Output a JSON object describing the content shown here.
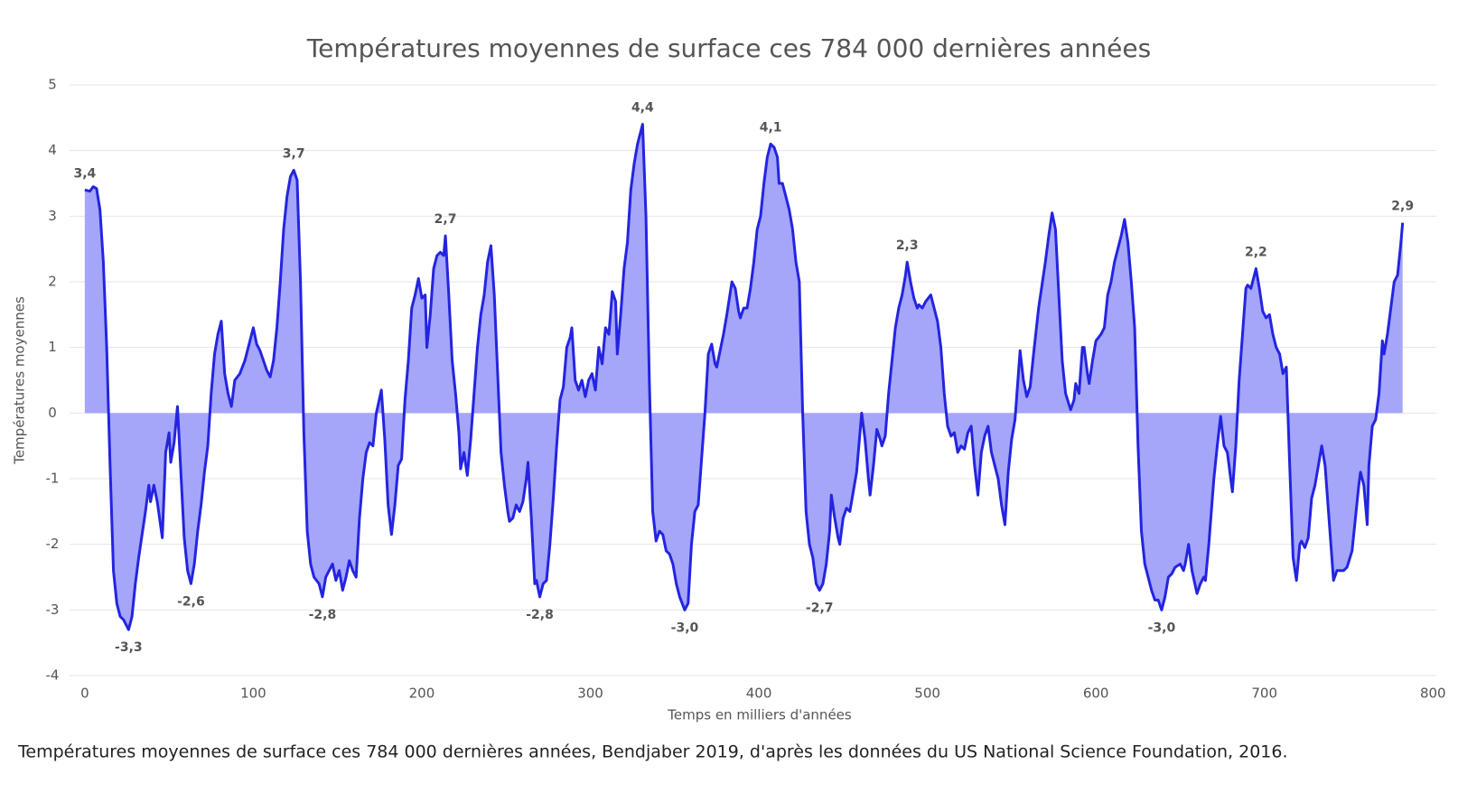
{
  "chart_data": {
    "type": "area",
    "title": "Températures moyennes de surface ces 784 000 dernières années",
    "x_label": "Temps en milliers d'années",
    "y_label": "Températures moyennes",
    "caption": "Températures moyennes de surface ces 784 000 dernières années, Bendjaber 2019, d'après les données du US National Science Foundation, 2016.",
    "xlim": [
      -1,
      802
    ],
    "ylim": [
      -4,
      5
    ],
    "xticks": [
      0,
      100,
      200,
      300,
      400,
      500,
      600,
      700,
      800
    ],
    "yticks": [
      -4,
      -3,
      -2,
      -1,
      0,
      1,
      2,
      3,
      4,
      5
    ],
    "grid": true,
    "series": [
      {
        "color": "#2424e0",
        "fill": "#a5a5fa",
        "x": [
          0,
          3,
          5,
          7,
          9,
          11,
          13,
          15,
          17,
          19,
          21,
          23,
          26,
          28,
          30,
          32,
          34,
          36,
          38,
          39,
          41,
          43,
          46,
          48,
          50,
          51,
          53,
          55,
          57,
          59,
          61,
          63,
          65,
          67,
          69,
          71,
          73,
          75,
          77,
          79,
          81,
          83,
          85,
          87,
          89,
          92,
          95,
          97,
          99,
          100,
          102,
          104,
          106,
          108,
          110,
          112,
          114,
          116,
          118,
          120,
          122,
          124,
          126,
          128,
          130,
          132,
          134,
          136,
          139,
          141,
          143,
          145,
          147,
          149,
          151,
          153,
          155,
          157,
          159,
          161,
          163,
          165,
          167,
          169,
          171,
          173,
          176,
          178,
          180,
          182,
          184,
          186,
          188,
          190,
          192,
          194,
          196,
          198,
          200,
          202,
          203,
          205,
          207,
          209,
          211,
          213,
          214,
          216,
          218,
          220,
          222,
          223,
          225,
          227,
          229,
          231,
          233,
          235,
          237,
          239,
          241,
          243,
          245,
          247,
          249,
          251,
          252,
          254,
          256,
          258,
          260,
          262,
          263,
          265,
          267,
          268,
          270,
          272,
          274,
          276,
          278,
          280,
          282,
          284,
          286,
          288,
          289,
          291,
          293,
          295,
          297,
          299,
          301,
          303,
          305,
          307,
          309,
          311,
          313,
          315,
          316,
          318,
          320,
          322,
          324,
          326,
          328,
          331,
          333,
          335,
          337,
          339,
          341,
          343,
          345,
          347,
          349,
          351,
          353,
          356,
          358,
          360,
          362,
          364,
          366,
          368,
          370,
          372,
          374,
          375,
          377,
          379,
          381,
          384,
          386,
          388,
          389,
          391,
          393,
          395,
          397,
          399,
          401,
          403,
          405,
          407,
          409,
          411,
          412,
          414,
          416,
          418,
          420,
          422,
          424,
          426,
          428,
          430,
          432,
          434,
          436,
          438,
          440,
          442,
          443,
          445,
          447,
          448,
          450,
          452,
          454,
          456,
          458,
          460,
          461,
          463,
          465,
          466,
          468,
          470,
          472,
          473,
          475,
          477,
          479,
          481,
          483,
          485,
          487,
          488,
          490,
          492,
          494,
          495,
          497,
          499,
          502,
          504,
          506,
          508,
          510,
          512,
          514,
          516,
          518,
          520,
          522,
          524,
          526,
          528,
          530,
          532,
          534,
          536,
          538,
          540,
          542,
          544,
          546,
          548,
          550,
          552,
          555,
          557,
          559,
          561,
          563,
          566,
          568,
          570,
          572,
          574,
          576,
          578,
          580,
          582,
          585,
          587,
          588,
          590,
          592,
          593,
          595,
          596,
          598,
          600,
          603,
          605,
          607,
          609,
          611,
          613,
          615,
          617,
          619,
          621,
          623,
          625,
          627,
          629,
          631,
          633,
          635,
          637,
          639,
          641,
          643,
          645,
          647,
          650,
          652,
          653,
          655,
          657,
          660,
          662,
          664,
          665,
          667,
          670,
          672,
          674,
          676,
          678,
          680,
          681,
          683,
          685,
          687,
          689,
          690,
          692,
          694,
          695,
          697,
          699,
          701,
          703,
          705,
          707,
          709,
          711,
          713,
          715,
          717,
          719,
          721,
          722,
          724,
          726,
          728,
          730,
          732,
          734,
          736,
          738,
          740,
          741,
          743,
          745,
          747,
          749,
          752,
          754,
          756,
          757,
          759,
          761,
          762,
          764,
          766,
          768,
          770,
          771,
          773,
          775,
          777,
          779,
          781,
          782
        ],
        "values": [
          3.4,
          3.38,
          3.45,
          3.42,
          3.1,
          2.3,
          1.0,
          -0.8,
          -2.4,
          -2.9,
          -3.1,
          -3.15,
          -3.3,
          -3.1,
          -2.6,
          -2.2,
          -1.85,
          -1.5,
          -1.1,
          -1.35,
          -1.1,
          -1.35,
          -1.9,
          -0.6,
          -0.3,
          -0.75,
          -0.45,
          0.1,
          -0.9,
          -1.9,
          -2.4,
          -2.6,
          -2.3,
          -1.8,
          -1.4,
          -0.9,
          -0.5,
          0.3,
          0.9,
          1.2,
          1.4,
          0.6,
          0.3,
          0.1,
          0.5,
          0.6,
          0.8,
          1.0,
          1.2,
          1.3,
          1.05,
          0.95,
          0.8,
          0.65,
          0.55,
          0.8,
          1.3,
          2.0,
          2.8,
          3.3,
          3.6,
          3.7,
          3.55,
          2.0,
          -0.3,
          -1.8,
          -2.3,
          -2.5,
          -2.6,
          -2.8,
          -2.5,
          -2.4,
          -2.3,
          -2.55,
          -2.4,
          -2.7,
          -2.5,
          -2.25,
          -2.4,
          -2.5,
          -1.6,
          -1.0,
          -0.6,
          -0.45,
          -0.5,
          0.0,
          0.35,
          -0.4,
          -1.4,
          -1.85,
          -1.4,
          -0.8,
          -0.7,
          0.2,
          0.8,
          1.6,
          1.8,
          2.05,
          1.75,
          1.8,
          1.0,
          1.5,
          2.2,
          2.4,
          2.45,
          2.4,
          2.7,
          1.8,
          0.8,
          0.3,
          -0.3,
          -0.85,
          -0.6,
          -0.95,
          -0.4,
          0.3,
          1.0,
          1.5,
          1.8,
          2.3,
          2.55,
          1.8,
          0.6,
          -0.6,
          -1.1,
          -1.5,
          -1.65,
          -1.6,
          -1.4,
          -1.5,
          -1.35,
          -1.0,
          -0.75,
          -1.6,
          -2.6,
          -2.55,
          -2.8,
          -2.6,
          -2.55,
          -2.0,
          -1.3,
          -0.5,
          0.2,
          0.4,
          1.0,
          1.15,
          1.3,
          0.5,
          0.35,
          0.5,
          0.25,
          0.5,
          0.6,
          0.35,
          1.0,
          0.75,
          1.3,
          1.2,
          1.85,
          1.7,
          0.9,
          1.5,
          2.2,
          2.6,
          3.4,
          3.8,
          4.1,
          4.4,
          3.0,
          0.5,
          -1.5,
          -1.95,
          -1.8,
          -1.85,
          -2.1,
          -2.15,
          -2.3,
          -2.6,
          -2.8,
          -3.0,
          -2.9,
          -2.0,
          -1.5,
          -1.4,
          -0.7,
          0.0,
          0.9,
          1.05,
          0.75,
          0.7,
          0.95,
          1.2,
          1.5,
          2.0,
          1.9,
          1.55,
          1.45,
          1.6,
          1.6,
          1.9,
          2.3,
          2.8,
          3.0,
          3.5,
          3.9,
          4.1,
          4.05,
          3.9,
          3.5,
          3.5,
          3.3,
          3.1,
          2.8,
          2.3,
          2.0,
          0.0,
          -1.5,
          -2.0,
          -2.2,
          -2.6,
          -2.7,
          -2.6,
          -2.3,
          -1.8,
          -1.25,
          -1.6,
          -1.9,
          -2.0,
          -1.6,
          -1.45,
          -1.5,
          -1.2,
          -0.9,
          -0.3,
          0.0,
          -0.4,
          -1.0,
          -1.25,
          -0.8,
          -0.25,
          -0.4,
          -0.5,
          -0.35,
          0.3,
          0.8,
          1.3,
          1.6,
          1.8,
          2.1,
          2.3,
          2.0,
          1.75,
          1.6,
          1.65,
          1.6,
          1.7,
          1.8,
          1.6,
          1.4,
          1.0,
          0.3,
          -0.2,
          -0.35,
          -0.3,
          -0.6,
          -0.5,
          -0.55,
          -0.3,
          -0.2,
          -0.8,
          -1.25,
          -0.6,
          -0.35,
          -0.2,
          -0.6,
          -0.8,
          -1.0,
          -1.4,
          -1.7,
          -0.9,
          -0.4,
          -0.1,
          0.95,
          0.5,
          0.25,
          0.4,
          0.9,
          1.6,
          1.95,
          2.3,
          2.7,
          3.05,
          2.8,
          1.8,
          0.8,
          0.3,
          0.05,
          0.2,
          0.45,
          0.3,
          1.0,
          1.0,
          0.6,
          0.45,
          0.8,
          1.1,
          1.2,
          1.3,
          1.8,
          2.0,
          2.3,
          2.5,
          2.7,
          2.95,
          2.6,
          2.0,
          1.3,
          -0.5,
          -1.8,
          -2.3,
          -2.5,
          -2.7,
          -2.85,
          -2.85,
          -3.0,
          -2.8,
          -2.5,
          -2.45,
          -2.35,
          -2.3,
          -2.4,
          -2.3,
          -2.0,
          -2.4,
          -2.75,
          -2.6,
          -2.5,
          -2.55,
          -2.0,
          -1.0,
          -0.5,
          -0.05,
          -0.5,
          -0.6,
          -1.0,
          -1.2,
          -0.5,
          0.5,
          1.2,
          1.9,
          1.95,
          1.9,
          2.1,
          2.2,
          1.9,
          1.55,
          1.45,
          1.5,
          1.2,
          1.0,
          0.9,
          0.6,
          0.7,
          -0.8,
          -2.2,
          -2.55,
          -2.0,
          -1.95,
          -2.05,
          -1.9,
          -1.3,
          -1.1,
          -0.8,
          -0.5,
          -0.8,
          -1.5,
          -2.2,
          -2.55,
          -2.4,
          -2.4,
          -2.4,
          -2.35,
          -2.1,
          -1.6,
          -1.1,
          -0.9,
          -1.1,
          -1.7,
          -0.8,
          -0.2,
          -0.1,
          0.3,
          1.1,
          0.9,
          1.2,
          1.6,
          2.0,
          2.1,
          2.6,
          2.9
        ]
      }
    ],
    "annotations": [
      {
        "x": 0,
        "y": 3.4,
        "label": "3,4"
      },
      {
        "x": 26,
        "y": -3.3,
        "label": "-3,3"
      },
      {
        "x": 63,
        "y": -2.6,
        "label": "-2,6"
      },
      {
        "x": 124,
        "y": 3.7,
        "label": "3,7"
      },
      {
        "x": 141,
        "y": -2.8,
        "label": "-2,8"
      },
      {
        "x": 214,
        "y": 2.7,
        "label": "2,7"
      },
      {
        "x": 270,
        "y": -2.8,
        "label": "-2,8"
      },
      {
        "x": 331,
        "y": 4.4,
        "label": "4,4"
      },
      {
        "x": 356,
        "y": -3.0,
        "label": "-3,0"
      },
      {
        "x": 407,
        "y": 4.1,
        "label": "4,1"
      },
      {
        "x": 436,
        "y": -2.7,
        "label": "-2,7"
      },
      {
        "x": 488,
        "y": 2.3,
        "label": "2,3"
      },
      {
        "x": 639,
        "y": -3.0,
        "label": "-3,0"
      },
      {
        "x": 695,
        "y": 2.2,
        "label": "2,2"
      },
      {
        "x": 782,
        "y": 2.9,
        "label": "2,9"
      }
    ]
  }
}
